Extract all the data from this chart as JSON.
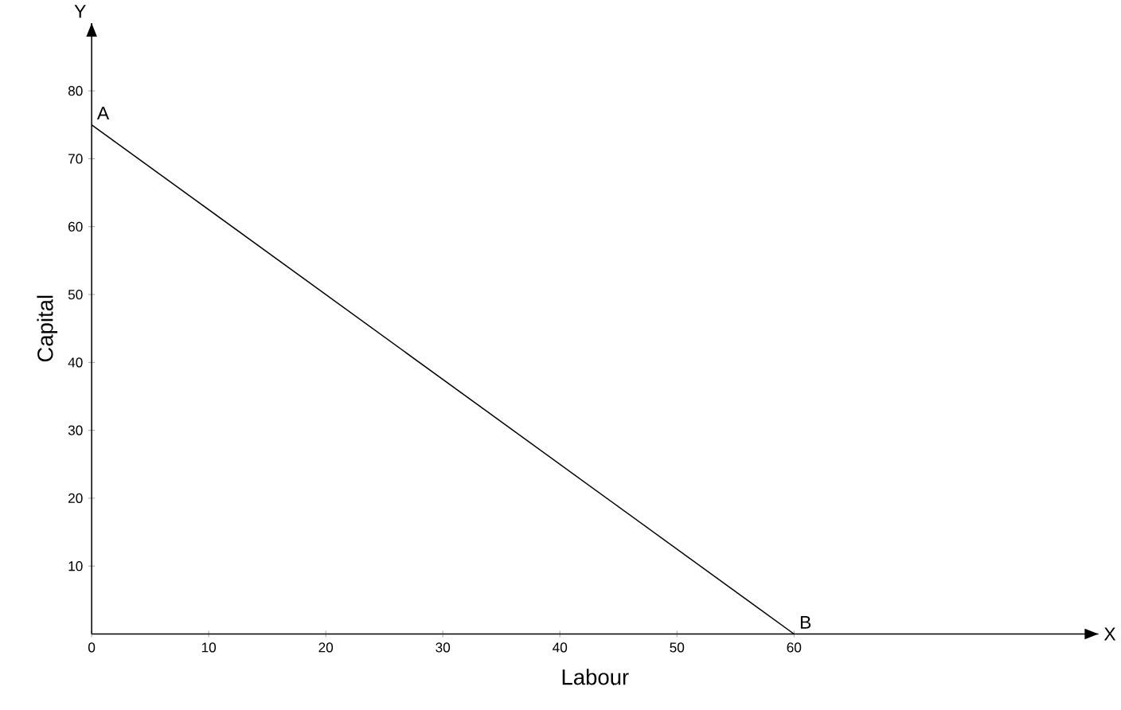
{
  "chart_data": {
    "type": "line",
    "xlabel": "Labour",
    "ylabel": "Capital",
    "x": [
      0,
      60
    ],
    "series": [
      {
        "color": "#000000",
        "values": [
          75,
          0
        ]
      }
    ],
    "xlim": [
      0,
      86
    ],
    "ylim": [
      0,
      90
    ],
    "xticks": [
      0,
      10,
      20,
      30,
      40,
      50,
      60
    ],
    "yticks": [
      10,
      20,
      30,
      40,
      50,
      60,
      70,
      80
    ],
    "marker": "none",
    "line_style": "solid",
    "grid": false,
    "annotations": [
      {
        "text": "A",
        "x": 0,
        "y": 75
      },
      {
        "text": "B",
        "x": 60,
        "y": 0
      },
      "Y",
      "X"
    ]
  }
}
